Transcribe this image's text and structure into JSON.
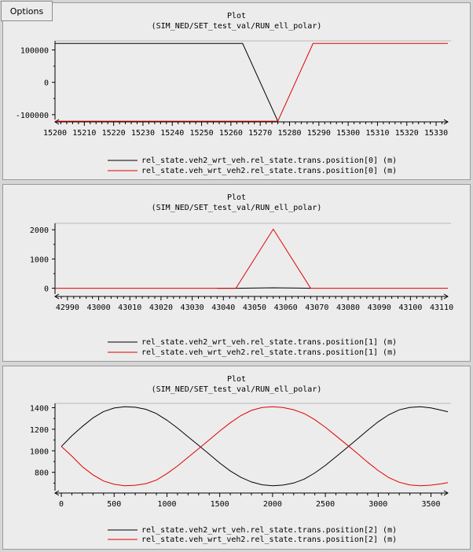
{
  "options_label": "Options",
  "chart_data": [
    {
      "type": "line",
      "title": "Plot",
      "subtitle": "(SIM_NED/SET_test_val/RUN_ell_polar)",
      "xlim": [
        15200,
        15334
      ],
      "ylim": [
        -115000,
        128000
      ],
      "xticks": [
        15200,
        15210,
        15220,
        15230,
        15240,
        15250,
        15260,
        15270,
        15280,
        15290,
        15300,
        15310,
        15320,
        15330
      ],
      "yticks": [
        -100000,
        0,
        100000
      ],
      "ytick_labels": [
        "-100000",
        "0",
        "100000"
      ],
      "series": [
        {
          "name": "rel_state.veh2_wrt_veh.rel_state.trans.position[0] (m)",
          "color": "#000000",
          "x": [
            15200,
            15264,
            15276
          ],
          "y": [
            120000,
            120000,
            -120000
          ]
        },
        {
          "name": "rel_state.veh_wrt_veh2.rel_state.trans.position[0] (m)",
          "color": "#e00000",
          "x": [
            15200,
            15276,
            15288,
            15334
          ],
          "y": [
            -120000,
            -120000,
            120000,
            120000
          ]
        }
      ]
    },
    {
      "type": "line",
      "title": "Plot",
      "subtitle": "(SIM_NED/SET_test_val/RUN_ell_polar)",
      "xlim": [
        42986,
        43112
      ],
      "ylim": [
        -200,
        2220
      ],
      "xticks": [
        42990,
        43000,
        43010,
        43020,
        43030,
        43040,
        43050,
        43060,
        43070,
        43080,
        43090,
        43100,
        43110
      ],
      "yticks": [
        0,
        1000,
        2000
      ],
      "ytick_labels": [
        "0",
        "1000",
        "2000"
      ],
      "series": [
        {
          "name": "rel_state.veh2_wrt_veh.rel_state.trans.position[1] (m)",
          "color": "#000000",
          "x": [
            43038,
            43044,
            43056,
            43068
          ],
          "y": [
            0,
            0,
            15,
            0
          ]
        },
        {
          "name": "rel_state.veh_wrt_veh2.rel_state.trans.position[1] (m)",
          "color": "#e00000",
          "x": [
            42986,
            43044,
            43056,
            43068,
            43112
          ],
          "y": [
            0,
            0,
            2020,
            0,
            0
          ]
        }
      ]
    },
    {
      "type": "line",
      "title": "Plot",
      "subtitle": "(SIM_NED/SET_test_val/RUN_ell_polar)",
      "xlim": [
        -60,
        3660
      ],
      "ylim": [
        630,
        1440
      ],
      "xticks": [
        0,
        500,
        1000,
        1500,
        2000,
        2500,
        3000,
        3500
      ],
      "yticks": [
        800,
        1000,
        1200,
        1400
      ],
      "ytick_labels": [
        "800",
        "1000",
        "1200",
        "1400"
      ],
      "series": [
        {
          "name": "rel_state.veh2_wrt_veh.rel_state.trans.position[2] (m)",
          "color": "#000000",
          "x": [
            0,
            100,
            200,
            300,
            400,
            500,
            600,
            700,
            800,
            900,
            1000,
            1100,
            1200,
            1300,
            1400,
            1500,
            1600,
            1700,
            1800,
            1900,
            2000,
            2100,
            2200,
            2300,
            2400,
            2500,
            2600,
            2700,
            2800,
            2900,
            3000,
            3100,
            3200,
            3300,
            3400,
            3500,
            3600,
            3660
          ],
          "y": [
            1040,
            1140,
            1226,
            1306,
            1364,
            1397,
            1409,
            1404,
            1385,
            1346,
            1284,
            1211,
            1130,
            1050,
            969,
            886,
            813,
            753,
            711,
            685,
            676,
            682,
            701,
            737,
            794,
            864,
            944,
            1025,
            1107,
            1190,
            1269,
            1334,
            1380,
            1403,
            1409,
            1398,
            1376,
            1363
          ]
        },
        {
          "name": "rel_state.veh_wrt_veh2.rel_state.trans.position[2] (m)",
          "color": "#e00000",
          "x": [
            0,
            100,
            200,
            300,
            400,
            500,
            600,
            700,
            800,
            900,
            1000,
            1100,
            1200,
            1300,
            1400,
            1500,
            1600,
            1700,
            1800,
            1900,
            2000,
            2100,
            2200,
            2300,
            2400,
            2500,
            2600,
            2700,
            2800,
            2900,
            3000,
            3100,
            3200,
            3300,
            3400,
            3500,
            3600,
            3660
          ],
          "y": [
            1040,
            950,
            852,
            777,
            720,
            689,
            676,
            680,
            695,
            728,
            788,
            859,
            940,
            1020,
            1101,
            1184,
            1260,
            1327,
            1375,
            1401,
            1409,
            1402,
            1381,
            1345,
            1289,
            1218,
            1139,
            1059,
            978,
            895,
            817,
            752,
            708,
            683,
            676,
            681,
            694,
            705
          ]
        }
      ]
    }
  ]
}
